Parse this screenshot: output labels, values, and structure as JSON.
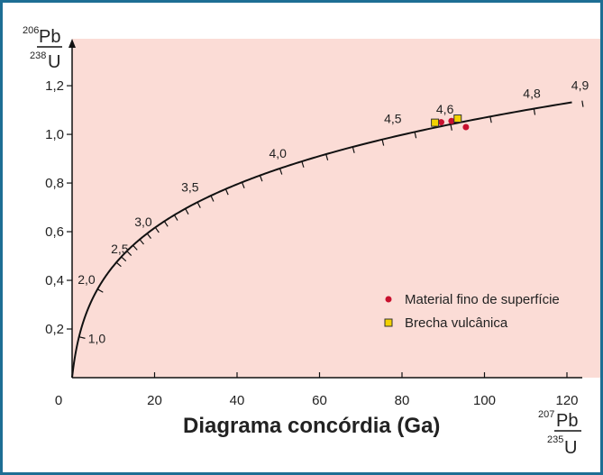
{
  "chart_data": {
    "type": "scatter",
    "title": "Diagrama concórdia (Ga)",
    "xlabel": {
      "sup_top": "207",
      "top": "Pb",
      "sup_bottom": "235",
      "bottom": "U"
    },
    "ylabel": {
      "sup_top": "206",
      "top": "Pb",
      "sup_bottom": "238",
      "bottom": "U"
    },
    "xlim": [
      0,
      120
    ],
    "ylim": [
      0,
      1.33
    ],
    "x_ticks": [
      {
        "value": 0,
        "label": "0"
      },
      {
        "value": 20,
        "label": "20"
      },
      {
        "value": 40,
        "label": "40"
      },
      {
        "value": 60,
        "label": "60"
      },
      {
        "value": 80,
        "label": "80"
      },
      {
        "value": 100,
        "label": "100"
      },
      {
        "value": 120,
        "label": "120"
      }
    ],
    "y_ticks": [
      {
        "value": 0.2,
        "label": "0,2"
      },
      {
        "value": 0.4,
        "label": "0,4"
      },
      {
        "value": 0.6,
        "label": "0,6"
      },
      {
        "value": 0.8,
        "label": "0,8"
      },
      {
        "value": 1.0,
        "label": "1,0"
      },
      {
        "value": 1.2,
        "label": "1,2"
      }
    ],
    "grid": false,
    "background_color": "#fbdcd6",
    "concordia": {
      "labels": [
        {
          "age": 1.0,
          "label": "1,0"
        },
        {
          "age": 2.0,
          "label": "2,0"
        },
        {
          "age": 2.5,
          "label": "2,5"
        },
        {
          "age": 3.0,
          "label": "3,0"
        },
        {
          "age": 3.5,
          "label": "3,5"
        },
        {
          "age": 4.0,
          "label": "4,0"
        },
        {
          "age": 4.5,
          "label": "4,5"
        },
        {
          "age": 4.6,
          "label": "4,6"
        },
        {
          "age": 4.8,
          "label": "4,8"
        },
        {
          "age": 4.9,
          "label": "4,9"
        }
      ],
      "tick_ages": [
        1.0,
        2.0,
        2.5,
        2.6,
        2.7,
        2.8,
        2.9,
        3.0,
        3.1,
        3.2,
        3.3,
        3.4,
        3.5,
        3.6,
        3.7,
        3.8,
        3.9,
        4.0,
        4.1,
        4.2,
        4.3,
        4.4,
        4.5,
        4.6,
        4.7,
        4.8,
        4.9
      ]
    },
    "series": [
      {
        "name": "Material fino de superfície",
        "color": "#c8102e",
        "marker": "circle",
        "points": [
          [
            89.5,
            1.05
          ],
          [
            92.0,
            1.055
          ],
          [
            95.5,
            1.03
          ]
        ]
      },
      {
        "name": "Brecha vulcânica",
        "color": "#f2d200",
        "marker": "square",
        "points": [
          [
            88.0,
            1.048
          ],
          [
            93.5,
            1.065
          ]
        ]
      }
    ],
    "legend": "center-right"
  }
}
